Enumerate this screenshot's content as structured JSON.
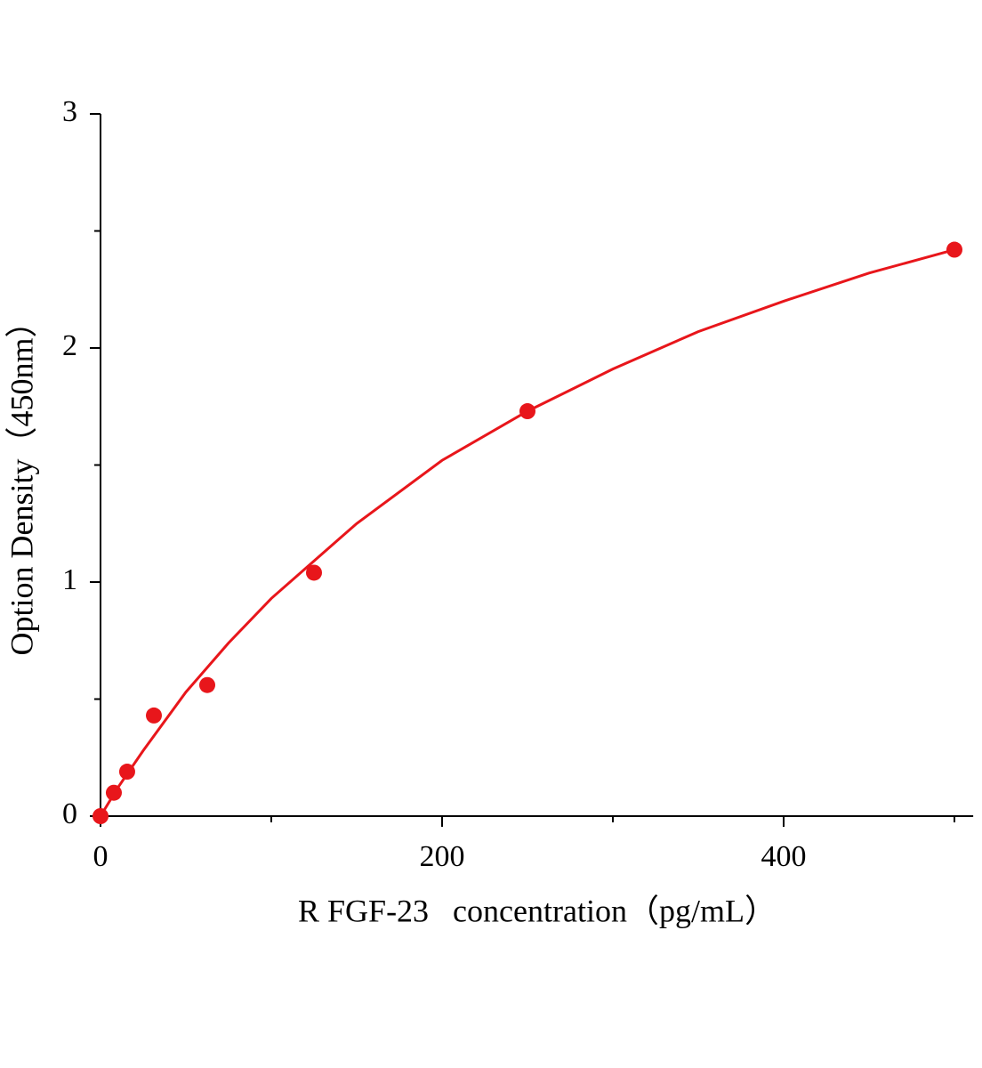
{
  "chart_data": {
    "type": "scatter",
    "x_label": "R FGF-23   concentration（pg/mL）",
    "y_label": "Option Density（450nm）",
    "xlim": [
      0,
      511
    ],
    "ylim": [
      0,
      3
    ],
    "xticks": [
      0,
      200,
      400
    ],
    "yticks": [
      0,
      1,
      2,
      3
    ],
    "xminorticks": [
      100,
      300,
      500
    ],
    "yminorticks": [
      0.5,
      1.5,
      2.5
    ],
    "grid": false,
    "series": [
      {
        "style": "markers",
        "color": "#e8161b",
        "x": [
          0,
          7.8,
          15.6,
          31.25,
          62.5,
          125,
          250,
          500
        ],
        "values": [
          0,
          0.1,
          0.19,
          0.43,
          0.56,
          1.04,
          1.73,
          2.42
        ]
      },
      {
        "style": "line",
        "color": "#e8161b",
        "x": [
          0,
          10,
          25,
          50,
          75,
          100,
          150,
          200,
          250,
          300,
          350,
          400,
          450,
          500
        ],
        "values": [
          0,
          0.12,
          0.28,
          0.53,
          0.74,
          0.93,
          1.25,
          1.52,
          1.73,
          1.91,
          2.07,
          2.2,
          2.32,
          2.42
        ]
      }
    ]
  }
}
